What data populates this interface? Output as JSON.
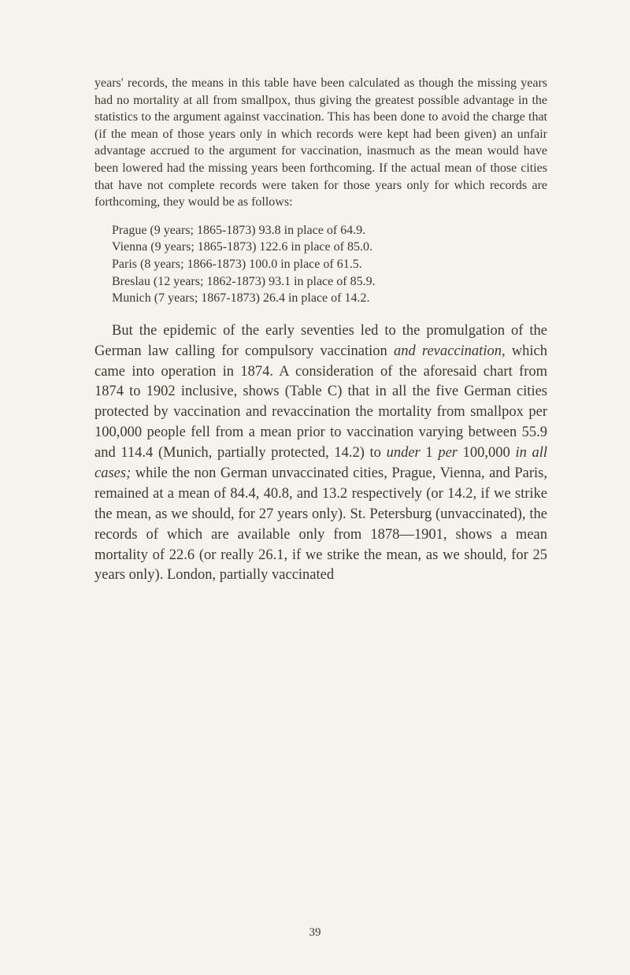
{
  "page": {
    "number": "39",
    "background_color": "#f5f3ed",
    "text_color": "#3a3a2e"
  },
  "typography": {
    "body_font": "Georgia, Times New Roman, serif",
    "small_text_size": 16,
    "main_text_size": 18.5,
    "page_number_size": 15,
    "line_height_small": 1.35,
    "line_height_main": 1.4
  },
  "content": {
    "intro_small": "years' records, the means in this table have been calculated as though the missing years had no mortality at all from smallpox, thus giving the greatest possible advantage in the statistics to the argument against vaccination. This has been done to avoid the charge that (if the mean of those years only in which records were kept had been given) an unfair advantage accrued to the argument for vaccination, inasmuch as the mean would have been lowered had the missing years been forthcoming. If the actual mean of those cities that have not complete records were taken for those years only for which records are forthcoming, they would be as follows:",
    "list_items": [
      "Prague (9 years; 1865-1873) 93.8 in place of 64.9.",
      "Vienna (9 years; 1865-1873) 122.6 in place of 85.0.",
      "Paris (8 years; 1866-1873) 100.0 in place of 61.5.",
      "Breslau (12 years; 1862-1873) 93.1 in place of 85.9.",
      "Munich (7 years; 1867-1873) 26.4 in place of 14.2."
    ],
    "main_para_1": "But the epidemic of the early seventies led to the promulgation of the German law calling for compulsory vaccination ",
    "main_para_1_italic_1": "and revaccination,",
    "main_para_1_cont_1": " which came into operation in 1874. A consideration of the aforesaid chart from 1874 to 1902 inclusive, shows (Table C) that in all the five German cities protected by vaccination and revaccination the mortality from smallpox per 100,000 people fell from a mean prior to vaccination varying between 55.9 and 114.4 (Munich, partially protected, 14.2) to ",
    "main_para_1_italic_2": "under",
    "main_para_1_cont_2": " 1 ",
    "main_para_1_italic_3": "per",
    "main_para_1_cont_3": " 100,000 ",
    "main_para_1_italic_4": "in all cases;",
    "main_para_1_cont_4": " while the non German unvaccinated cities, Prague, Vienna, and Paris, remained at a mean of 84.4, 40.8, and 13.2 respectively (or 14.2, if we strike the mean, as we should, for 27 years only). St. Petersburg (unvaccinated), the records of which are available only from 1878—1901, shows a mean mortality of 22.6 (or really 26.1, if we strike the mean, as we should, for 25 years only). London, partially vaccinated"
  }
}
